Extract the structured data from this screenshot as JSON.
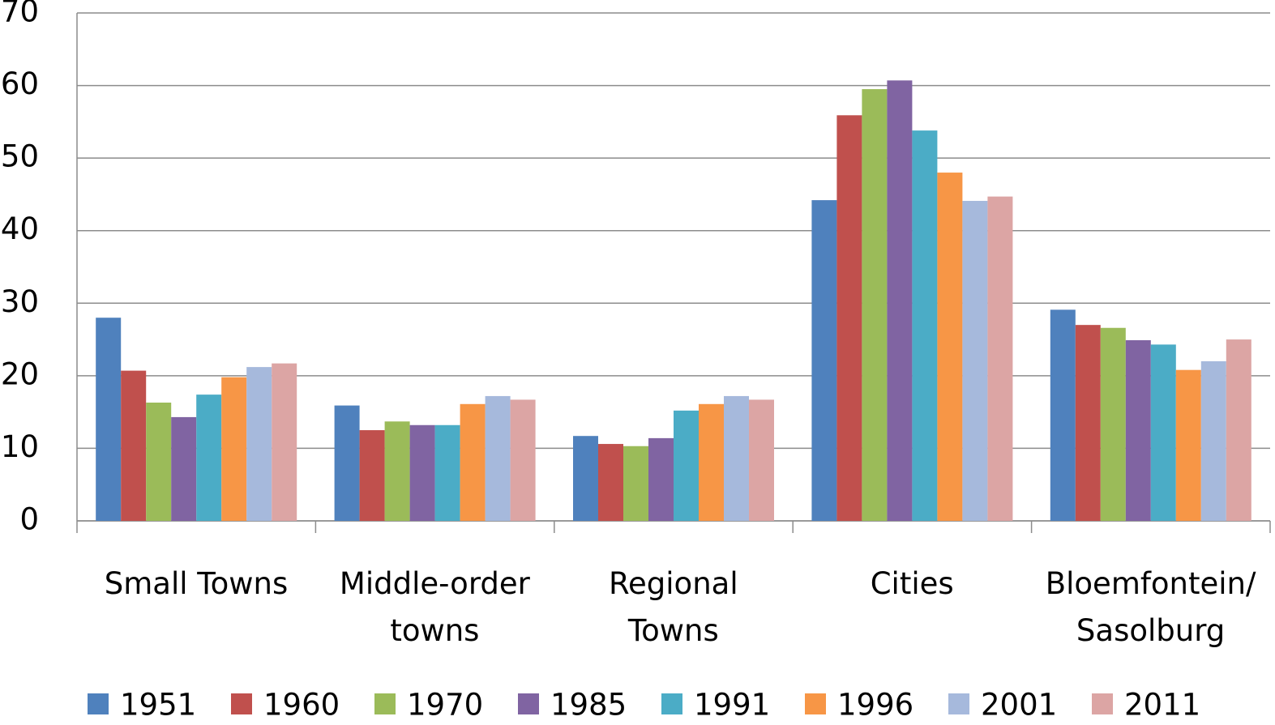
{
  "chart_data": {
    "type": "bar",
    "categories": [
      "Small Towns",
      "Middle-order\ntowns",
      "Regional\nTowns",
      "Cities",
      "Bloemfontein/\nSasolburg"
    ],
    "series": [
      {
        "name": "1951",
        "color": "#4f81bd",
        "values": [
          28.0,
          15.9,
          11.7,
          44.2,
          29.1
        ]
      },
      {
        "name": "1960",
        "color": "#c0504d",
        "values": [
          20.7,
          12.5,
          10.6,
          55.9,
          27.0
        ]
      },
      {
        "name": "1970",
        "color": "#9bbb59",
        "values": [
          16.3,
          13.7,
          10.3,
          59.5,
          26.6
        ]
      },
      {
        "name": "1985",
        "color": "#8064a2",
        "values": [
          14.3,
          13.2,
          11.4,
          60.7,
          24.9
        ]
      },
      {
        "name": "1991",
        "color": "#4bacc6",
        "values": [
          17.4,
          13.2,
          15.2,
          53.8,
          24.3
        ]
      },
      {
        "name": "1996",
        "color": "#f79646",
        "values": [
          19.8,
          16.1,
          16.1,
          48.0,
          20.8
        ]
      },
      {
        "name": "2001",
        "color": "#a6b9dc",
        "values": [
          21.2,
          17.2,
          17.2,
          44.1,
          22.0
        ]
      },
      {
        "name": "2011",
        "color": "#dca5a4",
        "values": [
          21.7,
          16.7,
          16.7,
          44.7,
          25.0
        ]
      }
    ],
    "ylim": [
      0,
      70
    ],
    "yticks": [
      0,
      10,
      20,
      30,
      40,
      50,
      60,
      70
    ],
    "grid": true,
    "legend": "bottom"
  }
}
